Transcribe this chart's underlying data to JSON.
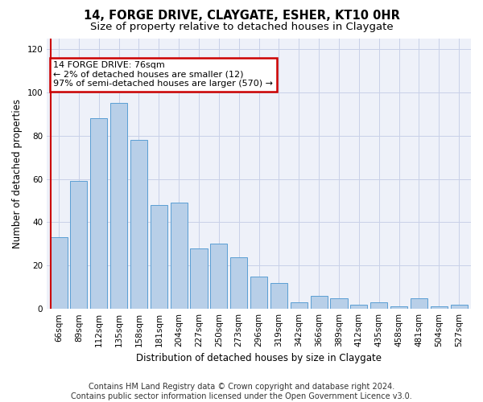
{
  "title": "14, FORGE DRIVE, CLAYGATE, ESHER, KT10 0HR",
  "subtitle": "Size of property relative to detached houses in Claygate",
  "xlabel": "Distribution of detached houses by size in Claygate",
  "ylabel": "Number of detached properties",
  "categories": [
    "66sqm",
    "89sqm",
    "112sqm",
    "135sqm",
    "158sqm",
    "181sqm",
    "204sqm",
    "227sqm",
    "250sqm",
    "273sqm",
    "296sqm",
    "319sqm",
    "342sqm",
    "366sqm",
    "389sqm",
    "412sqm",
    "435sqm",
    "458sqm",
    "481sqm",
    "504sqm",
    "527sqm"
  ],
  "bar_heights": [
    33,
    59,
    88,
    95,
    78,
    48,
    49,
    28,
    30,
    24,
    15,
    12,
    3,
    6,
    5,
    2,
    3,
    1,
    5,
    1,
    2
  ],
  "bar_color": "#b8cfe8",
  "bar_edge_color": "#5a9fd4",
  "grid_color": "#c8d0e8",
  "bg_color": "#eef1f9",
  "annotation_text": "14 FORGE DRIVE: 76sqm\n← 2% of detached houses are smaller (12)\n97% of semi-detached houses are larger (570) →",
  "annotation_box_color": "#ffffff",
  "annotation_box_edge": "#cc0000",
  "vline_color": "#cc0000",
  "ylim": [
    0,
    125
  ],
  "yticks": [
    0,
    20,
    40,
    60,
    80,
    100,
    120
  ],
  "footer_line1": "Contains HM Land Registry data © Crown copyright and database right 2024.",
  "footer_line2": "Contains public sector information licensed under the Open Government Licence v3.0.",
  "title_fontsize": 10.5,
  "subtitle_fontsize": 9.5,
  "axis_label_fontsize": 8.5,
  "tick_fontsize": 7.5,
  "annotation_fontsize": 8,
  "footer_fontsize": 7
}
